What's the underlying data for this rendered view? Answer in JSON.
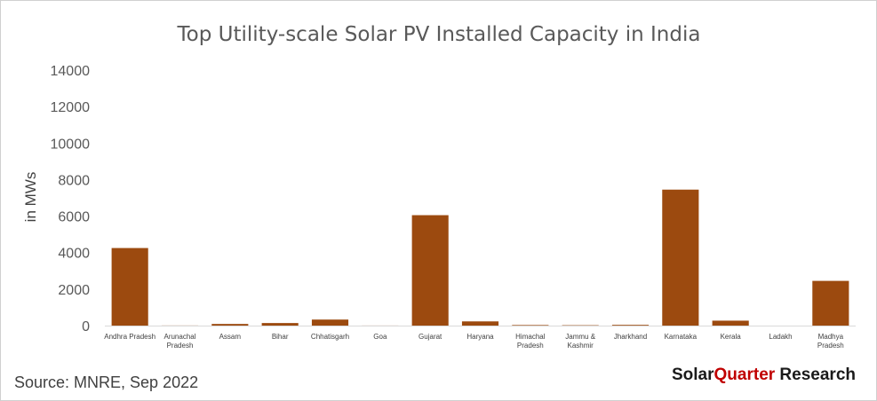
{
  "chart_data": {
    "type": "bar",
    "title": "Top Utility-scale Solar PV Installed Capacity in India",
    "ylabel": "in MWs",
    "xlabel": "",
    "ylim": [
      0,
      14000
    ],
    "yticks": [
      0,
      2000,
      4000,
      6000,
      8000,
      10000,
      12000,
      14000
    ],
    "categories": [
      "Andhra Pradesh",
      "Arunachal Pradesh",
      "Assam",
      "Bihar",
      "Chhatisgarh",
      "Goa",
      "Gujarat",
      "Haryana",
      "Himachal Pradesh",
      "Jammu & Kashmir",
      "Jharkhand",
      "Karnataka",
      "Kerala",
      "Ladakh",
      "Madhya Pradesh"
    ],
    "category_lines": [
      [
        "Andhra Pradesh"
      ],
      [
        "Arunachal",
        "Pradesh"
      ],
      [
        "Assam"
      ],
      [
        "Bihar"
      ],
      [
        "Chhatisgarh"
      ],
      [
        "Goa"
      ],
      [
        "Gujarat"
      ],
      [
        "Haryana"
      ],
      [
        "Himachal",
        "Pradesh"
      ],
      [
        "Jammu &",
        "Kashmir"
      ],
      [
        "Jharkhand"
      ],
      [
        "Karnataka"
      ],
      [
        "Kerala"
      ],
      [
        "Ladakh"
      ],
      [
        "Madhya",
        "Pradesh"
      ]
    ],
    "values": [
      4250,
      5,
      90,
      140,
      330,
      3,
      6050,
      230,
      30,
      20,
      40,
      7450,
      270,
      0,
      2450
    ],
    "bar_color": "#9c4a0f",
    "grid": false,
    "legend": "none"
  },
  "source_text": "Source: MNRE, Sep 2022",
  "brand": {
    "part1": "Solar",
    "part2": "Quarter",
    "part3": " Research",
    "color_dark": "#1a1a1a",
    "color_accent": "#c00000"
  }
}
